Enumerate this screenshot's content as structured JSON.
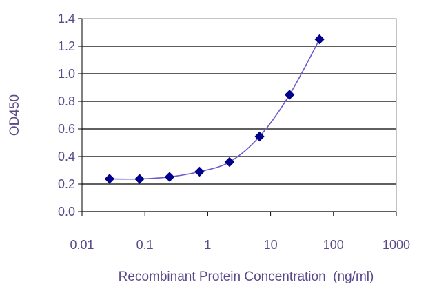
{
  "chart_data": {
    "type": "scatter",
    "title": "",
    "xlabel": "Recombinant Protein Concentration  (ng/ml)",
    "ylabel": "OD450",
    "x_scale": "log",
    "xlim": [
      0.01,
      1000
    ],
    "ylim": [
      0.0,
      1.4
    ],
    "x_ticks": [
      "0.01",
      "0.1",
      "1",
      "10",
      "100",
      "1000"
    ],
    "x_tick_values": [
      0.01,
      0.1,
      1,
      10,
      100,
      1000
    ],
    "y_ticks": [
      "0.0",
      "0.2",
      "0.4",
      "0.6",
      "0.8",
      "1.0",
      "1.2",
      "1.4"
    ],
    "y_tick_values": [
      0.0,
      0.2,
      0.4,
      0.6,
      0.8,
      1.0,
      1.2,
      1.4
    ],
    "grid": "horizontal",
    "legend": "none",
    "series": [
      {
        "x": [
          0.0274,
          0.0823,
          0.247,
          0.741,
          2.22,
          6.67,
          20,
          60
        ],
        "y": [
          0.238,
          0.237,
          0.252,
          0.29,
          0.36,
          0.545,
          0.848,
          1.25
        ],
        "fit_line": true,
        "marker": "diamond",
        "color": "#00008b",
        "line_color": "#6a5acd"
      }
    ]
  }
}
